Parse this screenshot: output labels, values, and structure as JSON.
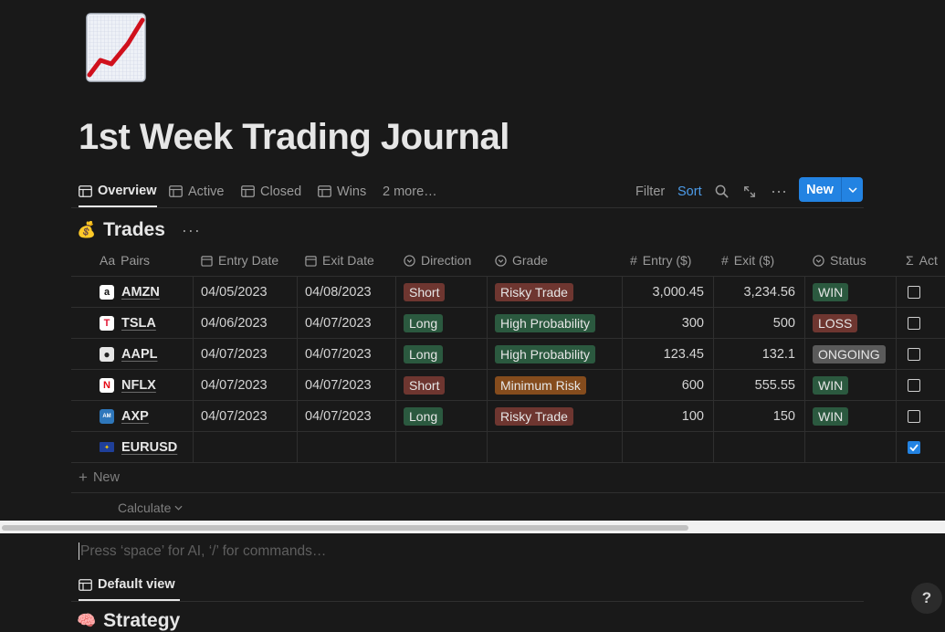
{
  "page": {
    "icon": "chart-increasing-icon",
    "title": "1st Week Trading Journal",
    "command_placeholder": "Press ‘space’ for AI, ‘/’ for commands…"
  },
  "views": {
    "tabs": [
      {
        "label": "Overview",
        "icon": "table-icon",
        "active": true
      },
      {
        "label": "Active",
        "icon": "table-icon"
      },
      {
        "label": "Closed",
        "icon": "table-icon"
      },
      {
        "label": "Wins",
        "icon": "table-icon"
      },
      {
        "label": "2 more…"
      }
    ],
    "filter_label": "Filter",
    "sort_label": "Sort",
    "new_label": "New"
  },
  "database": {
    "emoji": "💰",
    "title": "Trades",
    "more": "···",
    "columns": [
      {
        "label": "Pairs",
        "icon_text": "Aa"
      },
      {
        "label": "Entry Date",
        "icon": "calendar-icon"
      },
      {
        "label": "Exit Date",
        "icon": "calendar-icon"
      },
      {
        "label": "Direction",
        "icon": "select-icon"
      },
      {
        "label": "Grade",
        "icon": "select-icon"
      },
      {
        "label": "Entry ($)",
        "icon_text": "#"
      },
      {
        "label": "Exit ($)",
        "icon_text": "#"
      },
      {
        "label": "Status",
        "icon": "select-icon"
      },
      {
        "label": "Act",
        "icon_text": "Σ"
      }
    ],
    "rows": [
      {
        "pair": "AMZN",
        "logo": "amazon-logo-icon",
        "entry_date": "04/05/2023",
        "exit_date": "04/08/2023",
        "direction": "Short",
        "grade": "Risky Trade",
        "entry": "3,000.45",
        "exit": "3,234.56",
        "status": "WIN",
        "checked": false
      },
      {
        "pair": "TSLA",
        "logo": "tesla-logo-icon",
        "entry_date": "04/06/2023",
        "exit_date": "04/07/2023",
        "direction": "Long",
        "grade": "High Probability",
        "entry": "300",
        "exit": "500",
        "status": "LOSS",
        "checked": false
      },
      {
        "pair": "AAPL",
        "logo": "apple-logo-icon",
        "entry_date": "04/07/2023",
        "exit_date": "04/07/2023",
        "direction": "Long",
        "grade": "High Probability",
        "entry": "123.45",
        "exit": "132.1",
        "status": "ONGOING",
        "checked": false
      },
      {
        "pair": "NFLX",
        "logo": "netflix-logo-icon",
        "entry_date": "04/07/2023",
        "exit_date": "04/07/2023",
        "direction": "Short",
        "grade": "Minimum Risk",
        "entry": "600",
        "exit": "555.55",
        "status": "WIN",
        "checked": false
      },
      {
        "pair": "AXP",
        "logo": "amex-logo-icon",
        "entry_date": "04/07/2023",
        "exit_date": "04/07/2023",
        "direction": "Long",
        "grade": "Risky Trade",
        "entry": "100",
        "exit": "150",
        "status": "WIN",
        "checked": false
      },
      {
        "pair": "EURUSD",
        "logo": "eu-flag-icon",
        "entry_date": "",
        "exit_date": "",
        "direction": "",
        "grade": "",
        "entry": "",
        "exit": "",
        "status": "",
        "checked": true
      }
    ],
    "new_row_label": "New",
    "calculate_label": "Calculate"
  },
  "tag_colors": {
    "Short": "#6e3630",
    "Long": "#2b593f",
    "Risky Trade": "#6e3630",
    "High Probability": "#2b593f",
    "Minimum Risk": "#854c1d",
    "WIN": "#2b593f",
    "LOSS": "#6e3630",
    "ONGOING": "#5a5a5a"
  },
  "second_view": {
    "tab_label": "Default view",
    "emoji": "🧠",
    "title": "Strategy"
  },
  "help_label": "?"
}
